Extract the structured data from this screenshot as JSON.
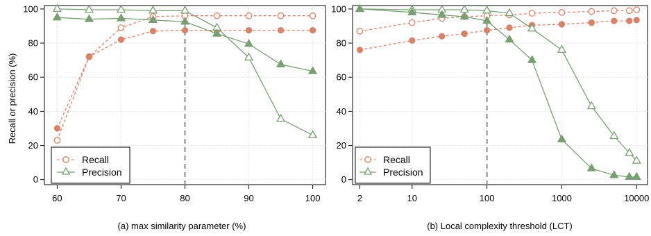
{
  "figure": {
    "ylabel": "Recall or precision (%)"
  },
  "colors": {
    "recall": "#d9826a",
    "precision": "#7a9e74",
    "grid": "#e4e4e4",
    "vline": "#8c8c8c"
  },
  "chart_data": [
    {
      "type": "line",
      "caption": "(a)  max similarity parameter (%)",
      "ylabel": "Recall or precision (%)",
      "x_scale": "linear",
      "xlim": [
        58,
        102
      ],
      "ylim": [
        -3,
        102
      ],
      "xticks": [
        60,
        70,
        80,
        90,
        100
      ],
      "xtick_labels": [
        "60",
        "70",
        "80",
        "90",
        "100"
      ],
      "yticks": [
        0,
        20,
        40,
        60,
        80,
        100
      ],
      "ytick_labels": [
        "0",
        "20",
        "40",
        "60",
        "80",
        "100"
      ],
      "grid": true,
      "legend": "bottom-left",
      "vline_x": 80,
      "series": [
        {
          "name": "Recall",
          "style": "dashed",
          "x": [
            60,
            65,
            70,
            75,
            80,
            85,
            90,
            95,
            100
          ],
          "values": [
            23,
            72,
            89,
            95.5,
            96,
            96,
            96,
            96,
            96
          ]
        },
        {
          "name": "Recall",
          "style": "dashed-filled",
          "x": [
            60,
            65,
            70,
            75,
            80,
            85,
            90,
            95,
            100
          ],
          "values": [
            30,
            72,
            82,
            87,
            87.5,
            87.5,
            87.5,
            87.5,
            87.5
          ]
        },
        {
          "name": "Precision",
          "style": "solid",
          "x": [
            60,
            65,
            70,
            75,
            80,
            85,
            90,
            95,
            100
          ],
          "values": [
            100,
            99.5,
            99.5,
            99,
            99,
            89,
            71.5,
            35.5,
            26
          ]
        },
        {
          "name": "Precision",
          "style": "solid-filled",
          "x": [
            60,
            65,
            70,
            75,
            80,
            85,
            90,
            95,
            100
          ],
          "values": [
            95,
            94,
            94.5,
            93.5,
            92.5,
            85.5,
            79.5,
            67.5,
            63.5
          ]
        }
      ]
    },
    {
      "type": "line",
      "caption": "(b)  Local complexity threshold (LCT)",
      "x_scale": "log",
      "xlim": [
        1.6,
        14000
      ],
      "ylim": [
        -3,
        102
      ],
      "xticks": [
        2,
        10,
        100,
        1000,
        10000
      ],
      "xtick_labels": [
        "2",
        "10",
        "100",
        "1000",
        "10000"
      ],
      "yticks": [
        0,
        20,
        40,
        60,
        80,
        100
      ],
      "ytick_labels": [
        "0",
        "20",
        "40",
        "60",
        "80",
        "100"
      ],
      "grid": true,
      "legend": "bottom-left",
      "vline_x": 100,
      "series": [
        {
          "name": "Recall",
          "style": "dashed",
          "x": [
            2,
            10,
            25,
            50,
            100,
            200,
            400,
            1000,
            2500,
            5000,
            8000,
            10000
          ],
          "values": [
            87,
            92,
            94.5,
            95.5,
            96,
            96.5,
            97.5,
            98,
            98.5,
            99,
            99,
            99.5
          ]
        },
        {
          "name": "Recall",
          "style": "dashed-filled",
          "x": [
            2,
            10,
            25,
            50,
            100,
            200,
            400,
            1000,
            2500,
            5000,
            8000,
            10000
          ],
          "values": [
            76,
            81.5,
            84,
            85.5,
            87.5,
            89,
            90.5,
            91,
            92,
            93,
            93,
            93.5
          ]
        },
        {
          "name": "Precision",
          "style": "solid",
          "x": [
            2,
            10,
            25,
            50,
            100,
            200,
            400,
            1000,
            2500,
            5000,
            8000,
            10000
          ],
          "values": [
            100,
            99.5,
            99.5,
            99.5,
            99,
            97.5,
            88.5,
            76,
            43,
            25.5,
            15.5,
            11
          ]
        },
        {
          "name": "Precision",
          "style": "solid-filled",
          "x": [
            2,
            10,
            25,
            50,
            100,
            200,
            400,
            1000,
            2500,
            5000,
            8000,
            10000
          ],
          "values": [
            100,
            98,
            96.5,
            95.5,
            93,
            82,
            70,
            23.5,
            6.5,
            2.5,
            1.5,
            1.5
          ]
        }
      ]
    }
  ]
}
